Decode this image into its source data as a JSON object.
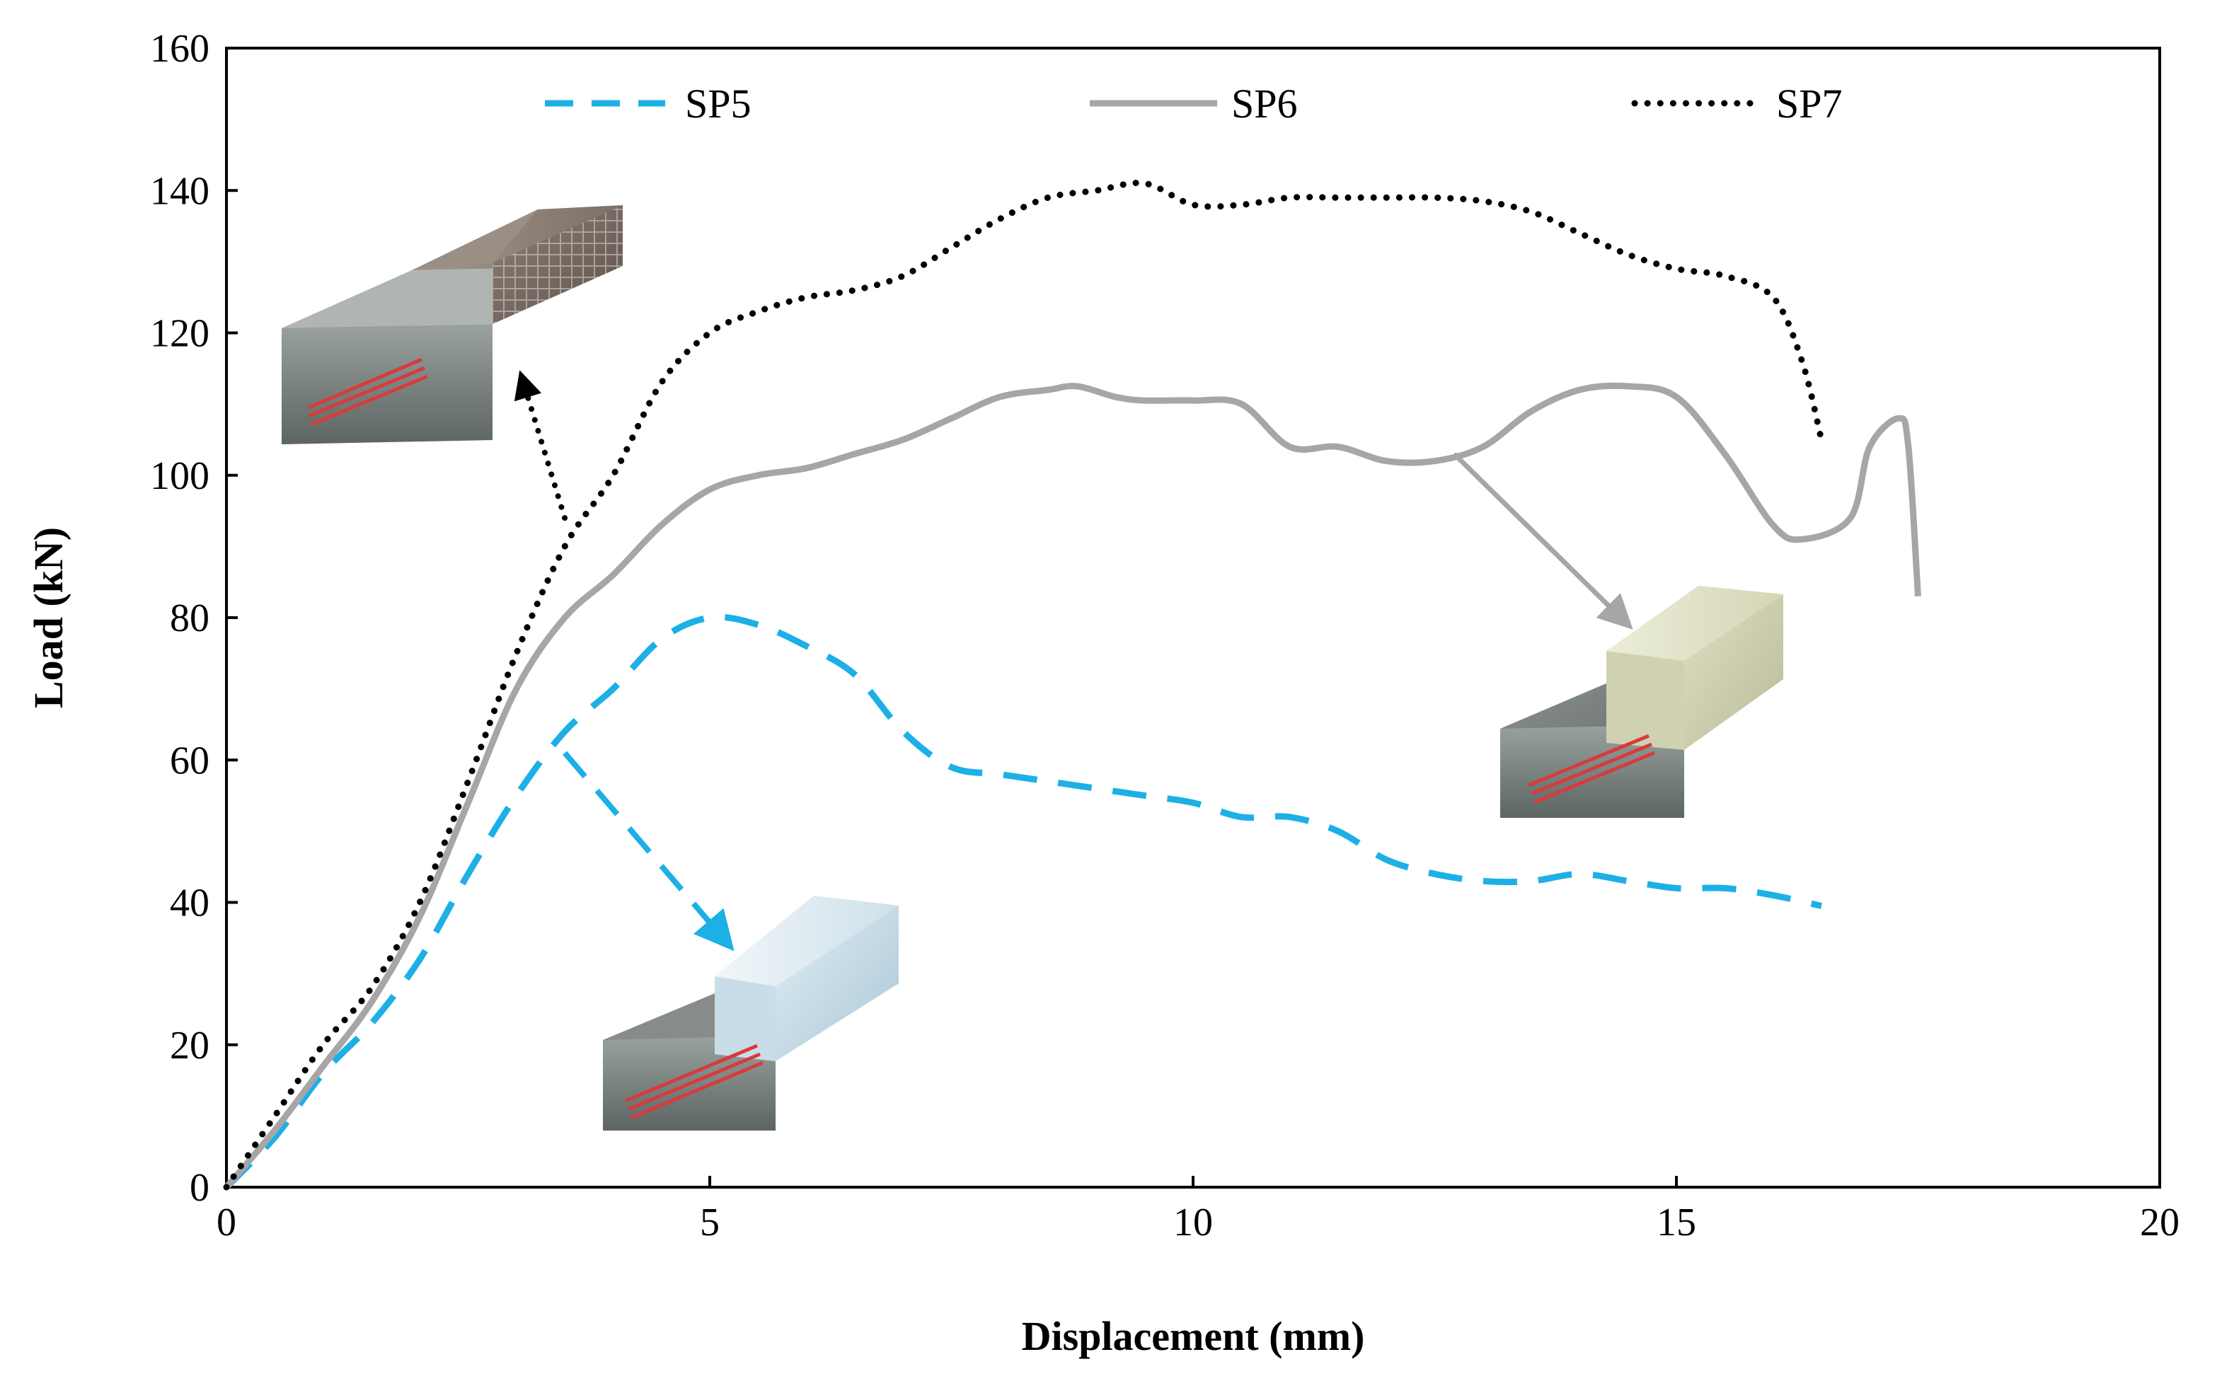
{
  "chart_data": {
    "type": "line",
    "xlabel": "Displacement (mm)",
    "ylabel": "Load (kN)",
    "xlim": [
      0,
      20
    ],
    "ylim": [
      0,
      160
    ],
    "xticks": [
      0,
      5,
      10,
      15,
      20
    ],
    "yticks": [
      0,
      20,
      40,
      60,
      80,
      100,
      120,
      140,
      160
    ],
    "grid": false,
    "legend_position": "top",
    "series": [
      {
        "name": "SP5",
        "style": "dashed",
        "color": "#1cb0e6",
        "points": [
          [
            0,
            0
          ],
          [
            0.5,
            7
          ],
          [
            1,
            16
          ],
          [
            1.5,
            23
          ],
          [
            2,
            32
          ],
          [
            2.5,
            44
          ],
          [
            3,
            55
          ],
          [
            3.5,
            64
          ],
          [
            4,
            70
          ],
          [
            4.5,
            77
          ],
          [
            5,
            80
          ],
          [
            5.5,
            79
          ],
          [
            6,
            76
          ],
          [
            6.5,
            72
          ],
          [
            7,
            64
          ],
          [
            7.5,
            59
          ],
          [
            8,
            58
          ],
          [
            8.5,
            57
          ],
          [
            9,
            56
          ],
          [
            9.5,
            55
          ],
          [
            10,
            54
          ],
          [
            10.5,
            52
          ],
          [
            11,
            52
          ],
          [
            11.5,
            50
          ],
          [
            12,
            46
          ],
          [
            12.5,
            44
          ],
          [
            13,
            43
          ],
          [
            13.5,
            43
          ],
          [
            14,
            44
          ],
          [
            14.5,
            43
          ],
          [
            15,
            42
          ],
          [
            15.5,
            42
          ],
          [
            16,
            41
          ],
          [
            16.5,
            39.5
          ]
        ]
      },
      {
        "name": "SP6",
        "style": "solid",
        "color": "#a6a6a6",
        "points": [
          [
            0,
            0
          ],
          [
            0.5,
            8
          ],
          [
            1,
            17
          ],
          [
            1.5,
            26
          ],
          [
            2,
            38
          ],
          [
            2.5,
            54
          ],
          [
            3,
            70
          ],
          [
            3.5,
            80
          ],
          [
            4,
            86
          ],
          [
            4.5,
            93
          ],
          [
            5,
            98
          ],
          [
            5.5,
            100
          ],
          [
            6,
            101
          ],
          [
            6.5,
            103
          ],
          [
            7,
            105
          ],
          [
            7.5,
            108
          ],
          [
            8,
            111
          ],
          [
            8.5,
            112
          ],
          [
            8.8,
            112.5
          ],
          [
            9.2,
            111
          ],
          [
            9.5,
            110.5
          ],
          [
            10,
            110.5
          ],
          [
            10.5,
            110
          ],
          [
            11,
            104
          ],
          [
            11.5,
            104
          ],
          [
            12,
            102
          ],
          [
            12.5,
            102
          ],
          [
            13,
            104
          ],
          [
            13.5,
            109
          ],
          [
            14,
            112
          ],
          [
            14.5,
            112.5
          ],
          [
            15,
            111
          ],
          [
            15.5,
            103
          ],
          [
            16,
            93
          ],
          [
            16.3,
            91
          ],
          [
            16.8,
            94
          ],
          [
            17,
            104
          ],
          [
            17.3,
            108
          ],
          [
            17.4,
            104
          ],
          [
            17.5,
            83
          ]
        ]
      },
      {
        "name": "SP7",
        "style": "dotted",
        "color": "#000000",
        "points": [
          [
            0,
            0
          ],
          [
            0.5,
            10
          ],
          [
            1,
            20
          ],
          [
            1.5,
            28
          ],
          [
            2,
            40
          ],
          [
            2.5,
            57
          ],
          [
            3,
            75
          ],
          [
            3.5,
            90
          ],
          [
            4,
            100
          ],
          [
            4.5,
            113
          ],
          [
            5,
            120
          ],
          [
            5.5,
            123
          ],
          [
            6,
            125
          ],
          [
            6.5,
            126
          ],
          [
            7,
            128
          ],
          [
            7.5,
            132
          ],
          [
            8,
            136
          ],
          [
            8.5,
            139
          ],
          [
            9,
            140
          ],
          [
            9.5,
            141
          ],
          [
            10,
            138
          ],
          [
            10.5,
            138
          ],
          [
            11,
            139
          ],
          [
            11.5,
            139
          ],
          [
            12,
            139
          ],
          [
            12.5,
            139
          ],
          [
            13,
            138.5
          ],
          [
            13.5,
            137
          ],
          [
            14,
            134
          ],
          [
            14.5,
            131
          ],
          [
            15,
            129
          ],
          [
            15.5,
            128
          ],
          [
            16,
            125
          ],
          [
            16.3,
            116
          ],
          [
            16.5,
            105
          ]
        ]
      }
    ],
    "annotations": [
      {
        "kind": "arrow",
        "series": "SP5",
        "from": [
          3.5,
          61
        ],
        "to": [
          5.2,
          34
        ]
      },
      {
        "kind": "arrow",
        "series": "SP6",
        "from": [
          12.7,
          103
        ],
        "to": [
          14.5,
          79
        ]
      },
      {
        "kind": "arrow",
        "series": "SP7",
        "from": [
          3.5,
          94
        ],
        "to": [
          3.05,
          114
        ]
      }
    ]
  }
}
